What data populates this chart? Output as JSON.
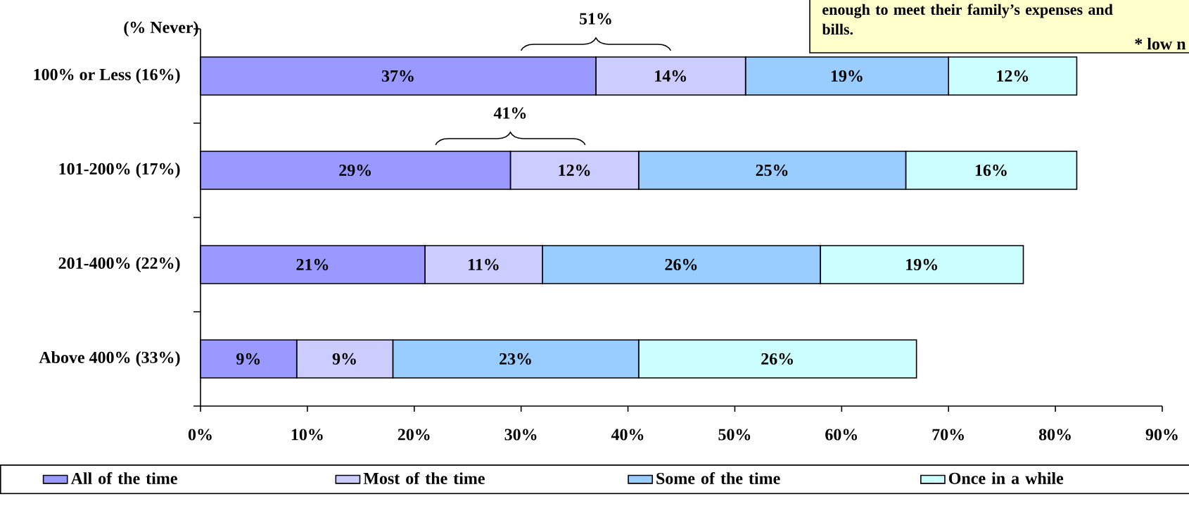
{
  "chart_data": {
    "type": "bar",
    "orientation": "horizontal",
    "stacked": true,
    "ylabel": "(% Never)",
    "categories": [
      "100% or Less (16%)",
      "101-200% (17%)",
      "201-400% (22%)",
      "Above 400% (33%)"
    ],
    "series": [
      {
        "name": "All of the time",
        "color": "#9999ff",
        "values": [
          37,
          29,
          21,
          9
        ],
        "value_labels": [
          "37%",
          "29%",
          "21%",
          "9%"
        ]
      },
      {
        "name": "Most of the time",
        "color": "#ccccff",
        "values": [
          14,
          12,
          11,
          9
        ],
        "value_labels": [
          "14%",
          "12%",
          "11%",
          "9%"
        ]
      },
      {
        "name": "Some of the time",
        "color": "#99ccff",
        "values": [
          19,
          25,
          26,
          23
        ],
        "value_labels": [
          "19%",
          "25%",
          "26%",
          "23%"
        ]
      },
      {
        "name": "Once in a while",
        "color": "#ccffff",
        "values": [
          12,
          16,
          19,
          26
        ],
        "value_labels": [
          "12%",
          "16%",
          "19%",
          "26%"
        ]
      }
    ],
    "xlim": [
      0,
      90
    ],
    "xticks": [
      {
        "value": 0,
        "label": "0%"
      },
      {
        "value": 10,
        "label": "10%"
      },
      {
        "value": 20,
        "label": "20%"
      },
      {
        "value": 30,
        "label": "30%"
      },
      {
        "value": 40,
        "label": "40%"
      },
      {
        "value": 50,
        "label": "50%"
      },
      {
        "value": 60,
        "label": "60%"
      },
      {
        "value": 70,
        "label": "70%"
      },
      {
        "value": 80,
        "label": "80%"
      },
      {
        "value": 90,
        "label": "90%"
      }
    ],
    "legend": "bottom",
    "annotations": [
      "enough to meet their family’s expenses and bills.",
      "* low n",
      "51%",
      "41%"
    ]
  }
}
